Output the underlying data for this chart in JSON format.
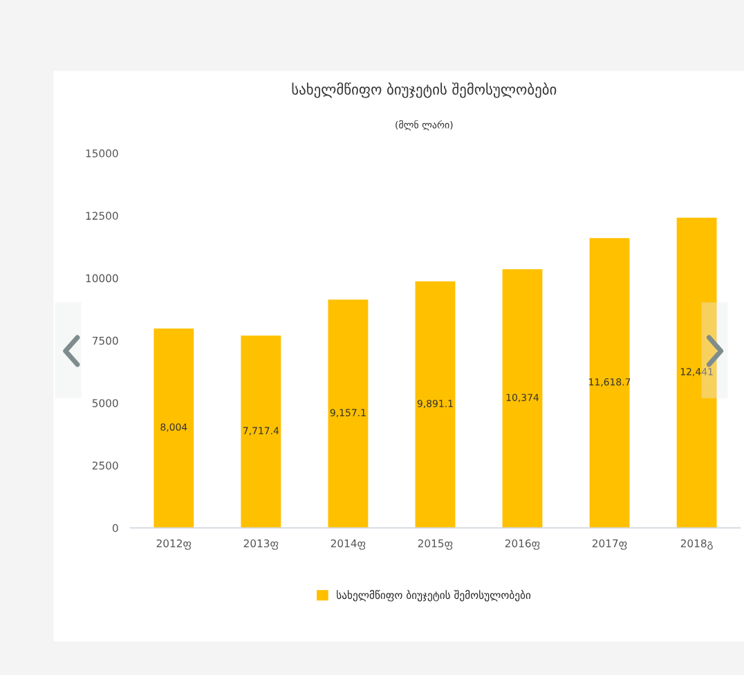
{
  "chart_data": {
    "type": "bar",
    "title": "სახელმწიფო ბიუჯეტის შემოსულობები",
    "subtitle": "(მლნ ლარი)",
    "categories": [
      "2012ფ",
      "2013ფ",
      "2014ფ",
      "2015ფ",
      "2016ფ",
      "2017ფ",
      "2018გ"
    ],
    "series": [
      {
        "name": "სახელმწიფო ბიუჯეტის შემოსულობები",
        "color": "#ffc000",
        "values": [
          8004,
          7717.4,
          9157.1,
          9891.1,
          10374,
          11618.7,
          12441
        ],
        "value_labels": [
          "8,004",
          "7,717.4",
          "9,157.1",
          "9,891.1",
          "10,374",
          "11,618.7",
          "12,441"
        ]
      }
    ],
    "ylim": [
      0,
      15000
    ],
    "yticks": [
      0,
      2500,
      5000,
      7500,
      10000,
      12500,
      15000
    ],
    "grid": false,
    "legend": "bottom"
  }
}
